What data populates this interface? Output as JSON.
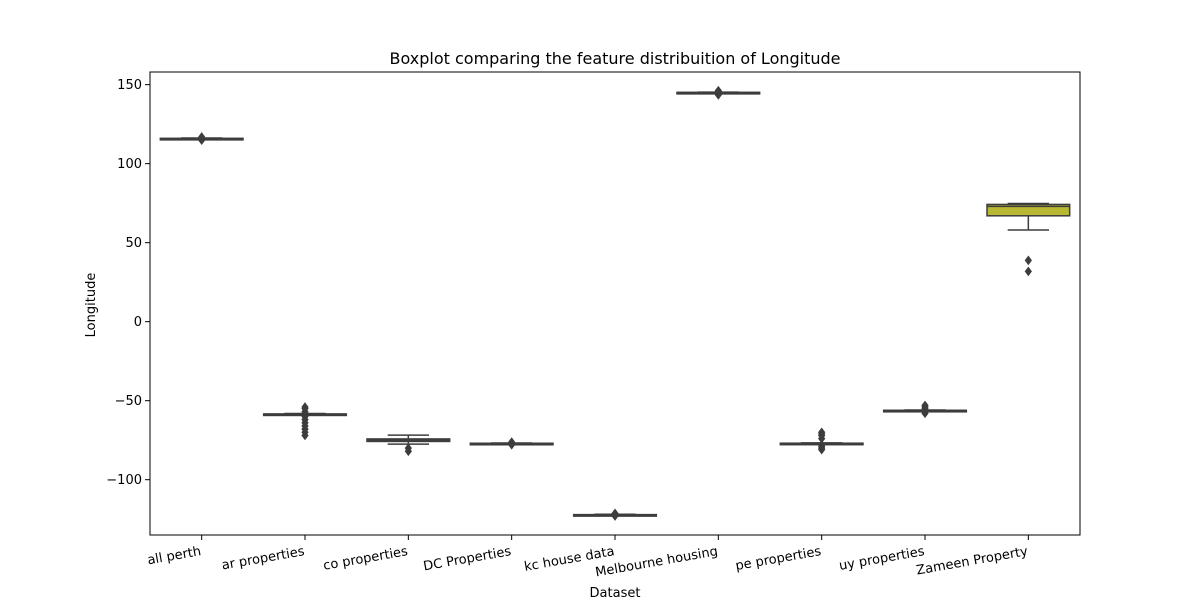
{
  "chart_data": {
    "type": "box",
    "title": "Boxplot comparing the feature distribuition of Longitude",
    "xlabel": "Dataset",
    "ylabel": "Longitude",
    "ylim": [
      -135,
      158
    ],
    "yticks": [
      -100,
      -50,
      0,
      50,
      100,
      150
    ],
    "colors": {
      "default_box": "#5a5a5a",
      "highlight_box": "#b8b833",
      "stroke": "#3d3d3d"
    },
    "categories": [
      "all perth",
      "ar properties",
      "co properties",
      "DC Properties",
      "kc house data",
      "Melbourne housing",
      "pe properties",
      "uy properties",
      "Zameen Property"
    ],
    "boxes": [
      {
        "category": "all perth",
        "whisker_low": 115.6,
        "q1": 115.8,
        "median": 115.9,
        "q3": 116.0,
        "whisker_high": 116.2,
        "outliers": [
          114.9,
          116.9
        ],
        "color": "#5a5a5a"
      },
      {
        "category": "ar properties",
        "whisker_low": -58.9,
        "q1": -58.6,
        "median": -58.5,
        "q3": -58.4,
        "whisker_high": -58.1,
        "outliers": [
          -72,
          -70,
          -68,
          -66,
          -64,
          -62,
          -60,
          -57,
          -55,
          -54
        ],
        "color": "#5a5a5a"
      },
      {
        "category": "co properties",
        "whisker_low": -77.5,
        "q1": -75.8,
        "median": -75.0,
        "q3": -74.2,
        "whisker_high": -71.8,
        "outliers": [
          -80.0,
          -82.0
        ],
        "color": "#5a5a5a"
      },
      {
        "category": "DC Properties",
        "whisker_low": -77.2,
        "q1": -77.05,
        "median": -77.0,
        "q3": -76.95,
        "whisker_high": -76.8,
        "outliers": [
          -76.2,
          -77.9
        ],
        "color": "#5a5a5a"
      },
      {
        "category": "kc house data",
        "whisker_low": -122.5,
        "q1": -122.3,
        "median": -122.2,
        "q3": -122.1,
        "whisker_high": -121.9,
        "outliers": [
          -121.3,
          -123.0
        ],
        "color": "#5a5a5a"
      },
      {
        "category": "Melbourne housing",
        "whisker_low": 144.7,
        "q1": 144.9,
        "median": 145.0,
        "q3": 145.1,
        "whisker_high": 145.3,
        "outliers": [
          143.5,
          144.0,
          145.8,
          146.2
        ],
        "color": "#5a5a5a"
      },
      {
        "category": "pe properties",
        "whisker_low": -77.3,
        "q1": -77.1,
        "median": -77.0,
        "q3": -76.9,
        "whisker_high": -76.7,
        "outliers": [
          -81,
          -80,
          -79,
          -78,
          -74,
          -72,
          -71,
          -70
        ],
        "color": "#5a5a5a"
      },
      {
        "category": "uy properties",
        "whisker_low": -56.3,
        "q1": -56.2,
        "median": -56.15,
        "q3": -56.1,
        "whisker_high": -55.9,
        "outliers": [
          -58,
          -57,
          -55,
          -54,
          -53
        ],
        "color": "#5a5a5a"
      },
      {
        "category": "Zameen Property",
        "whisker_low": 58.0,
        "q1": 67.0,
        "median": 73.0,
        "q3": 74.2,
        "whisker_high": 74.8,
        "outliers": [
          38.8,
          31.8
        ],
        "color": "#b8b833"
      }
    ],
    "grid": false,
    "legend": "none"
  }
}
